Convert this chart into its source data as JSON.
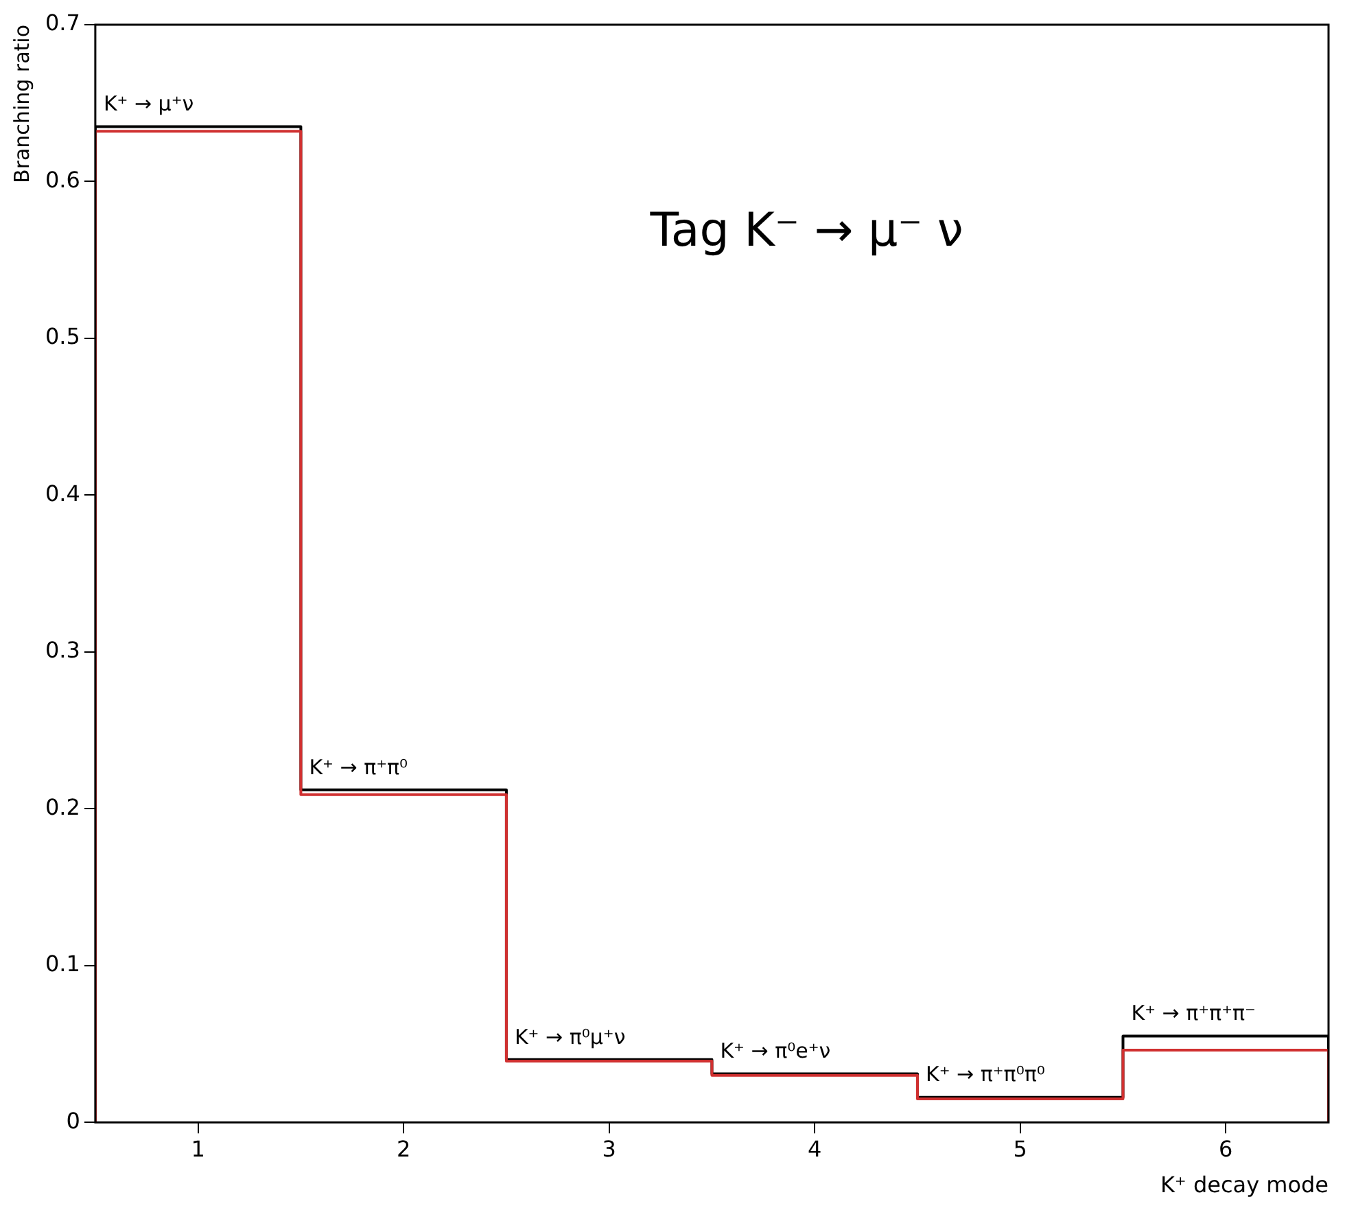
{
  "chart_data": {
    "type": "histogram",
    "title": "Tag K⁻ → μ⁻ ν",
    "xlabel": "K⁺ decay mode",
    "ylabel": "Branching ratio",
    "bins": [
      0.5,
      1.5,
      2.5,
      3.5,
      4.5,
      5.5,
      6.5
    ],
    "series": [
      {
        "color": "#000000",
        "values": [
          0.635,
          0.212,
          0.04,
          0.031,
          0.016,
          0.055
        ]
      },
      {
        "color": "#d03030",
        "values": [
          0.632,
          0.209,
          0.039,
          0.03,
          0.015,
          0.046
        ]
      }
    ],
    "xlim": [
      0.5,
      6.5
    ],
    "xticks": [
      1,
      2,
      3,
      4,
      5,
      6
    ],
    "ylim": [
      0,
      0.7
    ],
    "yticks": [
      0,
      0.1,
      0.2,
      0.3,
      0.4,
      0.5,
      0.6,
      0.7
    ],
    "grid": false,
    "legend": false,
    "annotations": [
      {
        "text": "K⁺ → μ⁺ν",
        "x": 1,
        "y": 0.635
      },
      {
        "text": "K⁺ → π⁺π⁰",
        "x": 2,
        "y": 0.212
      },
      {
        "text": "K⁺ → π⁰μ⁺ν",
        "x": 3,
        "y": 0.04
      },
      {
        "text": "K⁺ → π⁰e⁺ν",
        "x": 4,
        "y": 0.031
      },
      {
        "text": "K⁺ → π⁺π⁰π⁰",
        "x": 5,
        "y": 0.016
      },
      {
        "text": "K⁺ → π⁺π⁺π⁻",
        "x": 6,
        "y": 0.055
      }
    ]
  }
}
